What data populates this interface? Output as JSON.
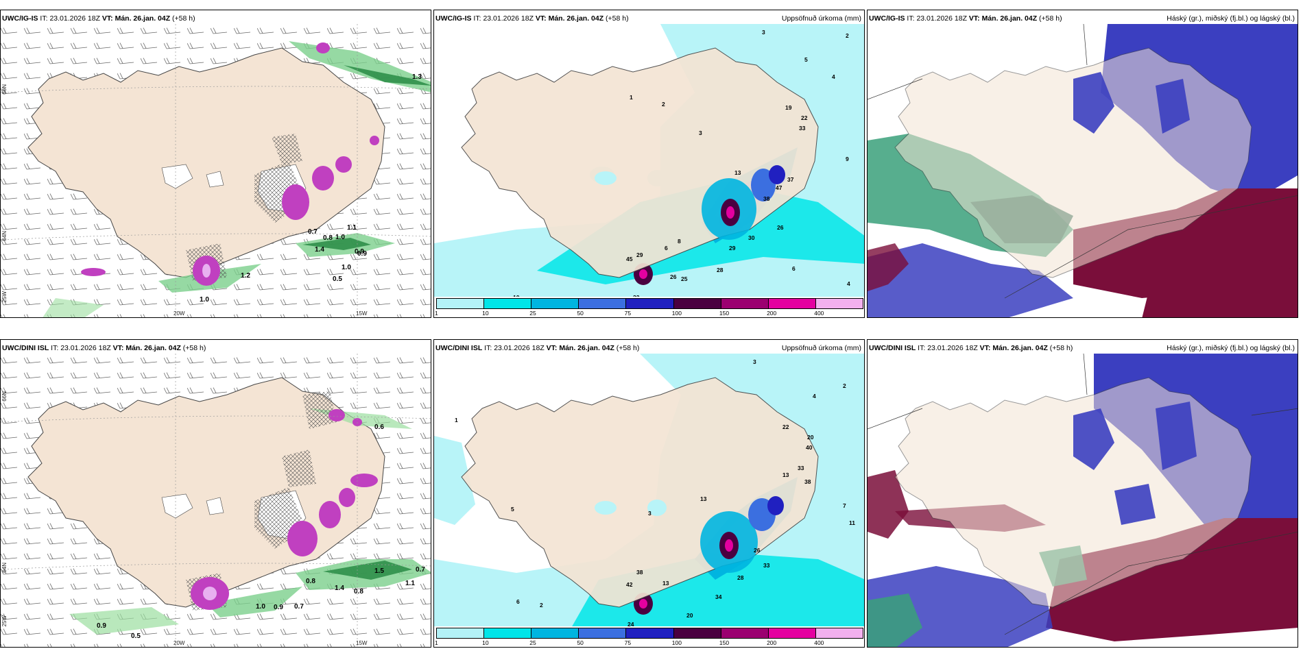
{
  "rows": [
    {
      "model": "UWC/IG-IS",
      "run_label": "IT:",
      "run": "23.01.2026 18Z",
      "valid_label": "VT:",
      "valid": "Mán. 26.jan. 04Z",
      "lead": "(+58 h)"
    },
    {
      "model": "UWC/DINI ISL",
      "run_label": "IT:",
      "run": "23.01.2026 18Z",
      "valid_label": "VT:",
      "valid": "Mán. 26.jan. 04Z",
      "lead": "(+58 h)"
    }
  ],
  "precip_title": "Uppsöfnuð úrkoma (mm)",
  "cloud_title": "Háský (gr.), miðský (fj.bl.) og lágský (bl.)",
  "grid_labels": {
    "lat66": "66N",
    "lat64": "64N",
    "lon25": "25W",
    "lon20": "20W",
    "lon15": "15W"
  },
  "legend": {
    "ticks": [
      "1",
      "10",
      "25",
      "50",
      "75",
      "100",
      "150",
      "200",
      "400"
    ],
    "colors": [
      "#b3f2f7",
      "#00e5e8",
      "#00b5e0",
      "#3b6fe0",
      "#2020c0",
      "#4a0040",
      "#9b0070",
      "#e400a0",
      "#f2b0ee"
    ]
  },
  "colors": {
    "land": "#f4e4d4",
    "sea_precip": "#b8f4f8",
    "wind_green": "#2f8f4a",
    "hail_purple": "#c040c0",
    "cloud_high_green": "#3aa07a",
    "cloud_mid_blue": "#3b3fc0",
    "cloud_low_red": "#7a0e3a"
  },
  "wind_numbers_top": [
    "1.0",
    "1.1",
    "0.9",
    "0.8",
    "0.7",
    "1.4",
    "1.0",
    "0.5",
    "1.0",
    "1.3",
    "0.9",
    "1.2"
  ],
  "wind_numbers_bottom": [
    "0.6",
    "0.9",
    "0.5",
    "0.7",
    "1.1",
    "0.8",
    "0.9",
    "1.5",
    "0.8",
    "1.4",
    "0.7",
    "1.0"
  ],
  "precip_numbers_top": [
    "3",
    "2",
    "5",
    "4",
    "9",
    "19",
    "22",
    "33",
    "37",
    "47",
    "38",
    "26",
    "30",
    "29",
    "28",
    "25",
    "26",
    "32",
    "10",
    "45",
    "29",
    "8",
    "6",
    "13",
    "17",
    "16",
    "6",
    "4",
    "1",
    "2",
    "3"
  ],
  "precip_numbers_bottom": [
    "3",
    "2",
    "4",
    "22",
    "20",
    "40",
    "33",
    "38",
    "13",
    "13",
    "11",
    "7",
    "28",
    "26",
    "33",
    "34",
    "20",
    "24",
    "42",
    "38",
    "13",
    "6",
    "7",
    "2",
    "1",
    "5",
    "8",
    "3"
  ]
}
